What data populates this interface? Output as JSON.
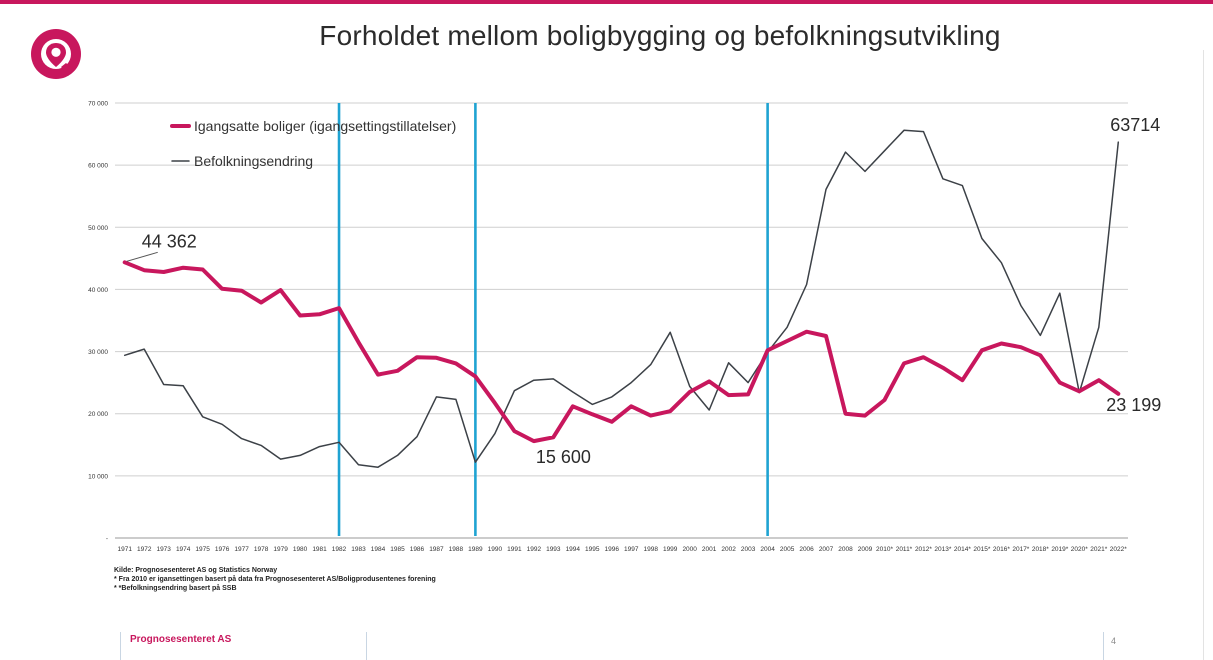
{
  "slide": {
    "title": "Forholdet mellom boligbygging og befolkningsutvikling",
    "sources": [
      "Kilde: Prognosesenteret AS og Statistics Norway",
      "* Fra 2010 er igansettingen basert på data fra Prognosesenteret AS/Boligprodusentenes forening",
      "* *Befolkningsendring basert på SSB"
    ],
    "footer_brand": "Prognosesenteret AS",
    "page_number": "4",
    "brand_color": "#c8175d"
  },
  "chart_data": {
    "type": "line",
    "title": "",
    "xlabel": "",
    "ylabel": "",
    "ylim": [
      0,
      70000
    ],
    "y_ticks": [
      0,
      10000,
      20000,
      30000,
      40000,
      50000,
      60000,
      70000
    ],
    "y_tick_labels": [
      "-",
      "10 000",
      "20 000",
      "30 000",
      "40 000",
      "50 000",
      "60 000",
      "70 000"
    ],
    "grid": true,
    "legend": "top-left",
    "categories": [
      "1971",
      "1972",
      "1973",
      "1974",
      "1975",
      "1976",
      "1977",
      "1978",
      "1979",
      "1980",
      "1981",
      "1982",
      "1983",
      "1984",
      "1985",
      "1986",
      "1987",
      "1988",
      "1989",
      "1990",
      "1991",
      "1992",
      "1993",
      "1994",
      "1995",
      "1996",
      "1997",
      "1998",
      "1999",
      "2000",
      "2001",
      "2002",
      "2003",
      "2004",
      "2005",
      "2006",
      "2007",
      "2008",
      "2009",
      "2010*",
      "2011*",
      "2012*",
      "2013*",
      "2014*",
      "2015*",
      "2016*",
      "2017*",
      "2018*",
      "2019*",
      "2020*",
      "2021*",
      "2022*"
    ],
    "series": [
      {
        "name": "Igangsatte boliger (igangsettingstillatelser)",
        "color": "#c8175d",
        "values": [
          44362,
          43100,
          42800,
          43500,
          43200,
          40100,
          39800,
          37900,
          39900,
          35800,
          36000,
          37000,
          31500,
          26300,
          26900,
          29100,
          29000,
          28100,
          26000,
          21700,
          17200,
          15600,
          16200,
          21200,
          19900,
          18700,
          21200,
          19700,
          20400,
          23500,
          25200,
          23000,
          23100,
          30200,
          31700,
          33200,
          32500,
          20000,
          19700,
          22200,
          28100,
          29100,
          27400,
          25400,
          30200,
          31300,
          30700,
          29400,
          25000,
          23600,
          25400,
          23199
        ],
        "line_width": 4
      },
      {
        "name": "Befolkningsendring",
        "color": "#3c4147",
        "values": [
          29400,
          30400,
          24700,
          24500,
          19500,
          18300,
          16000,
          14900,
          12700,
          13300,
          14700,
          15400,
          11800,
          11400,
          13300,
          16300,
          22700,
          22300,
          12200,
          16800,
          23700,
          25400,
          25600,
          23500,
          21500,
          22700,
          25000,
          27900,
          33100,
          24400,
          20600,
          28200,
          25000,
          29900,
          33900,
          40800,
          56100,
          62100,
          59000,
          62300,
          65600,
          65400,
          57800,
          56700,
          48200,
          44300,
          37400,
          32600,
          39400,
          23400,
          33900,
          63714
        ],
        "line_width": 1.5
      }
    ],
    "period_markers": [
      "1982",
      "1989",
      "2004"
    ],
    "period_marker_color": "#1fa3d2",
    "annotations": [
      {
        "text": "44 362",
        "series": 0,
        "category": "1971"
      },
      {
        "text": "15 600",
        "series": 0,
        "category": "1992"
      },
      {
        "text": "23 199",
        "series": 0,
        "category": "2022*"
      },
      {
        "text": "63714",
        "series": 1,
        "category": "2022*"
      }
    ]
  }
}
